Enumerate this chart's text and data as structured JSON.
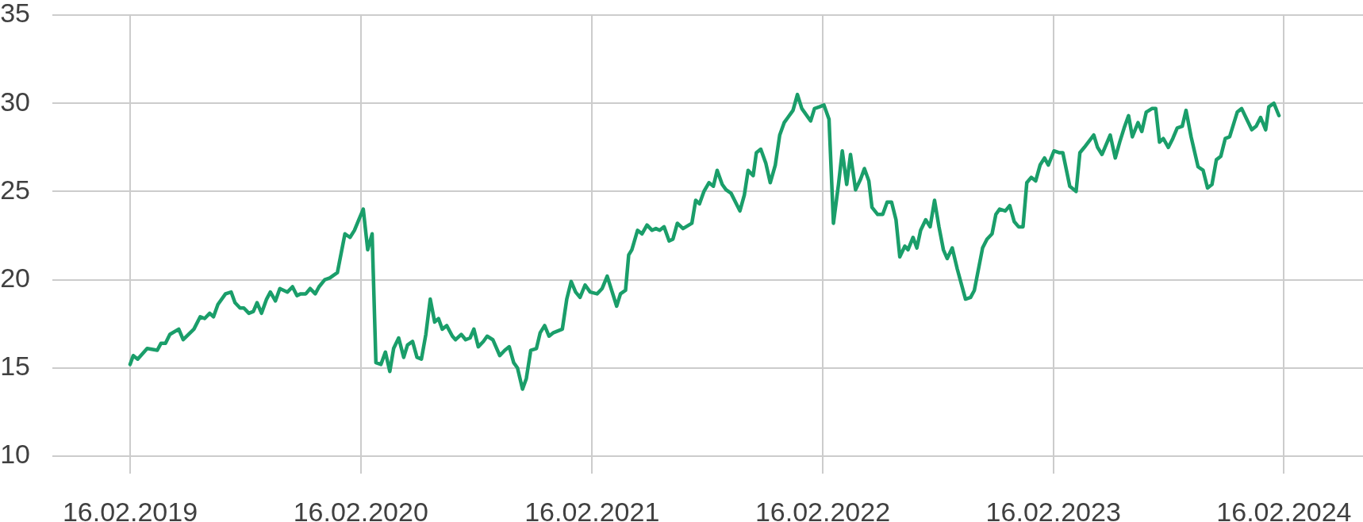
{
  "chart_data": {
    "type": "line",
    "x": [
      "2019-02-16",
      "2019-02-21",
      "2019-02-28",
      "2019-03-15",
      "2019-03-31",
      "2019-04-06",
      "2019-04-13",
      "2019-04-20",
      "2019-05-04",
      "2019-05-11",
      "2019-05-28",
      "2019-06-07",
      "2019-06-14",
      "2019-06-22",
      "2019-06-28",
      "2019-07-05",
      "2019-07-17",
      "2019-07-26",
      "2019-08-01",
      "2019-08-09",
      "2019-08-15",
      "2019-08-23",
      "2019-08-30",
      "2019-09-05",
      "2019-09-12",
      "2019-09-20",
      "2019-09-26",
      "2019-10-04",
      "2019-10-11",
      "2019-10-23",
      "2019-10-31",
      "2019-11-07",
      "2019-11-13",
      "2019-11-21",
      "2019-11-28",
      "2019-12-06",
      "2019-12-12",
      "2019-12-21",
      "2019-12-29",
      "2020-01-10",
      "2020-01-22",
      "2020-01-30",
      "2020-02-06",
      "2020-02-13",
      "2020-02-20",
      "2020-02-27",
      "2020-03-05",
      "2020-03-11",
      "2020-03-19",
      "2020-03-26",
      "2020-04-02",
      "2020-04-08",
      "2020-04-16",
      "2020-04-24",
      "2020-04-30",
      "2020-05-08",
      "2020-05-15",
      "2020-05-22",
      "2020-05-29",
      "2020-06-05",
      "2020-06-12",
      "2020-06-18",
      "2020-06-24",
      "2020-07-01",
      "2020-07-10",
      "2020-07-15",
      "2020-07-24",
      "2020-07-31",
      "2020-08-07",
      "2020-08-13",
      "2020-08-20",
      "2020-08-28",
      "2020-09-03",
      "2020-09-12",
      "2020-09-23",
      "2020-10-01",
      "2020-10-08",
      "2020-10-15",
      "2020-10-21",
      "2020-10-29",
      "2020-11-04",
      "2020-11-11",
      "2020-11-20",
      "2020-11-26",
      "2020-12-03",
      "2020-12-10",
      "2020-12-17",
      "2020-12-31",
      "2021-01-07",
      "2021-01-14",
      "2021-01-21",
      "2021-01-28",
      "2021-02-05",
      "2021-02-13",
      "2021-02-24",
      "2021-03-04",
      "2021-03-12",
      "2021-03-27",
      "2021-04-02",
      "2021-04-10",
      "2021-04-15",
      "2021-04-20",
      "2021-04-29",
      "2021-05-06",
      "2021-05-14",
      "2021-05-22",
      "2021-05-28",
      "2021-06-03",
      "2021-06-10",
      "2021-06-18",
      "2021-06-24",
      "2021-07-01",
      "2021-07-10",
      "2021-07-24",
      "2021-07-30",
      "2021-08-05",
      "2021-08-12",
      "2021-08-20",
      "2021-08-27",
      "2021-09-02",
      "2021-09-10",
      "2021-09-16",
      "2021-09-24",
      "2021-10-08",
      "2021-10-15",
      "2021-10-21",
      "2021-10-29",
      "2021-11-03",
      "2021-11-10",
      "2021-11-18",
      "2021-11-25",
      "2021-12-03",
      "2021-12-10",
      "2021-12-17",
      "2021-12-23",
      "2021-12-31",
      "2022-01-07",
      "2022-01-14",
      "2022-01-28",
      "2022-02-03",
      "2022-02-11",
      "2022-02-18",
      "2022-02-26",
      "2022-03-05",
      "2022-03-13",
      "2022-03-19",
      "2022-03-26",
      "2022-04-01",
      "2022-04-09",
      "2022-04-17",
      "2022-04-23",
      "2022-04-30",
      "2022-05-05",
      "2022-05-14",
      "2022-05-22",
      "2022-05-29",
      "2022-06-05",
      "2022-06-12",
      "2022-06-18",
      "2022-06-26",
      "2022-07-01",
      "2022-07-09",
      "2022-07-15",
      "2022-07-21",
      "2022-07-29",
      "2022-08-05",
      "2022-08-12",
      "2022-08-19",
      "2022-08-26",
      "2022-09-01",
      "2022-09-09",
      "2022-09-17",
      "2022-09-30",
      "2022-10-08",
      "2022-10-14",
      "2022-10-27",
      "2022-11-03",
      "2022-11-11",
      "2022-11-17",
      "2022-11-23",
      "2022-12-02",
      "2022-12-09",
      "2022-12-16",
      "2022-12-23",
      "2022-12-30",
      "2023-01-05",
      "2023-01-12",
      "2023-01-19",
      "2023-01-26",
      "2023-02-02",
      "2023-02-08",
      "2023-02-17",
      "2023-02-25",
      "2023-03-03",
      "2023-03-14",
      "2023-03-24",
      "2023-03-30",
      "2023-04-06",
      "2023-04-21",
      "2023-04-27",
      "2023-05-04",
      "2023-05-17",
      "2023-05-25",
      "2023-06-01",
      "2023-06-08",
      "2023-06-15",
      "2023-06-21",
      "2023-06-30",
      "2023-07-06",
      "2023-07-13",
      "2023-07-22",
      "2023-07-28",
      "2023-08-03",
      "2023-08-09",
      "2023-08-17",
      "2023-08-24",
      "2023-08-31",
      "2023-09-08",
      "2023-09-14",
      "2023-09-22",
      "2023-10-03",
      "2023-10-11",
      "2023-10-18",
      "2023-10-25",
      "2023-11-01",
      "2023-11-08",
      "2023-11-15",
      "2023-11-22",
      "2023-12-04",
      "2023-12-11",
      "2023-12-19",
      "2023-12-27",
      "2024-01-03",
      "2024-01-10",
      "2024-01-18",
      "2024-01-23",
      "2024-01-31",
      "2024-02-08"
    ],
    "series": [
      {
        "color": "#1a9e6a",
        "values": [
          15.2,
          15.7,
          15.5,
          16.1,
          16.0,
          16.4,
          16.4,
          16.9,
          17.2,
          16.6,
          17.2,
          17.9,
          17.8,
          18.1,
          17.9,
          18.6,
          19.2,
          19.3,
          18.7,
          18.4,
          18.4,
          18.1,
          18.2,
          18.7,
          18.1,
          18.9,
          19.3,
          18.8,
          19.5,
          19.3,
          19.6,
          19.1,
          19.2,
          19.2,
          19.5,
          19.2,
          19.6,
          20.0,
          20.1,
          20.4,
          22.6,
          22.4,
          22.8,
          23.4,
          24.0,
          21.7,
          22.6,
          15.3,
          15.2,
          15.9,
          14.8,
          16.1,
          16.7,
          15.6,
          16.3,
          16.5,
          15.6,
          15.5,
          16.9,
          18.9,
          17.6,
          17.8,
          17.2,
          17.4,
          16.8,
          16.6,
          16.9,
          16.6,
          16.7,
          17.2,
          16.2,
          16.5,
          16.8,
          16.6,
          15.7,
          16.0,
          16.2,
          15.3,
          15.0,
          13.8,
          14.4,
          16.0,
          16.1,
          17.0,
          17.4,
          16.8,
          17.0,
          17.2,
          18.9,
          19.9,
          19.3,
          19.0,
          19.7,
          19.3,
          19.2,
          19.5,
          20.2,
          18.5,
          19.2,
          19.4,
          21.4,
          21.7,
          22.8,
          22.6,
          23.1,
          22.8,
          22.9,
          22.8,
          23.0,
          22.2,
          22.3,
          23.2,
          22.9,
          23.2,
          24.5,
          24.3,
          25.0,
          25.5,
          25.3,
          26.2,
          25.4,
          25.1,
          24.9,
          23.9,
          24.8,
          26.2,
          25.9,
          27.2,
          27.4,
          26.6,
          25.5,
          26.5,
          28.2,
          28.9,
          29.2,
          29.6,
          30.5,
          29.7,
          29.0,
          29.7,
          29.8,
          29.9,
          29.1,
          23.2,
          25.4,
          27.3,
          25.4,
          27.1,
          25.1,
          25.7,
          26.3,
          25.6,
          24.1,
          23.7,
          23.7,
          24.4,
          24.4,
          23.4,
          21.3,
          21.9,
          21.7,
          22.4,
          21.8,
          22.8,
          23.4,
          23.0,
          24.5,
          23.0,
          21.7,
          21.2,
          21.8,
          20.6,
          18.9,
          19.0,
          19.4,
          21.8,
          22.3,
          22.6,
          23.7,
          24.0,
          23.9,
          24.2,
          23.3,
          23.0,
          23.0,
          25.5,
          25.8,
          25.6,
          26.5,
          26.9,
          26.5,
          27.3,
          27.2,
          27.2,
          25.3,
          25.0,
          27.2,
          27.5,
          28.2,
          27.5,
          27.1,
          28.2,
          26.9,
          27.8,
          28.6,
          29.3,
          28.1,
          28.9,
          28.4,
          29.5,
          29.7,
          29.7,
          27.8,
          28.0,
          27.5,
          28.0,
          28.6,
          28.7,
          29.6,
          28.1,
          26.4,
          26.2,
          25.2,
          25.4,
          26.8,
          27.0,
          28.0,
          28.1,
          29.5,
          29.7,
          29.1,
          28.5,
          28.7,
          29.2,
          28.5,
          29.8,
          30.0,
          29.3
        ]
      }
    ],
    "xlim": [
      "2018-10-16",
      "2024-06-20"
    ],
    "xticks": [
      {
        "value": "2019-02-16",
        "label": "16.02.2019"
      },
      {
        "value": "2020-02-16",
        "label": "16.02.2020"
      },
      {
        "value": "2021-02-16",
        "label": "16.02.2021"
      },
      {
        "value": "2022-02-16",
        "label": "16.02.2022"
      },
      {
        "value": "2023-02-16",
        "label": "16.02.2023"
      },
      {
        "value": "2024-02-16",
        "label": "16.02.2024"
      }
    ],
    "ylim": [
      10,
      35
    ],
    "yticks": [
      10,
      15,
      20,
      25,
      30,
      35
    ],
    "grid": true,
    "line_style": "solid"
  }
}
